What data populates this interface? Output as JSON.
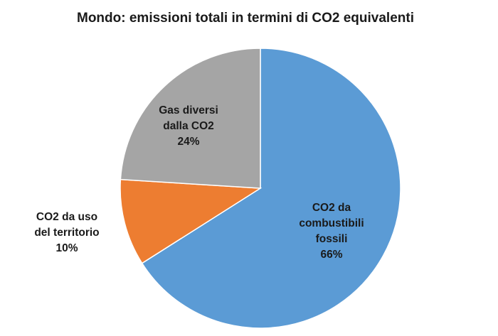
{
  "chart_data": {
    "type": "pie",
    "title": "Mondo: emissioni totali in termini di CO2 equivalenti",
    "slices": [
      {
        "label_lines": [
          "CO2 da",
          "combustibili",
          "fossili"
        ],
        "value": 66,
        "value_label": "66%",
        "color": "#5b9bd5"
      },
      {
        "label_lines": [
          "CO2 da uso",
          "del territorio"
        ],
        "value": 10,
        "value_label": "10%",
        "color": "#ed7d31"
      },
      {
        "label_lines": [
          "Gas diversi",
          "dalla CO2"
        ],
        "value": 24,
        "value_label": "24%",
        "color": "#a5a5a5"
      }
    ],
    "start_angle_deg": 0,
    "direction": "clockwise",
    "legend": "none"
  }
}
